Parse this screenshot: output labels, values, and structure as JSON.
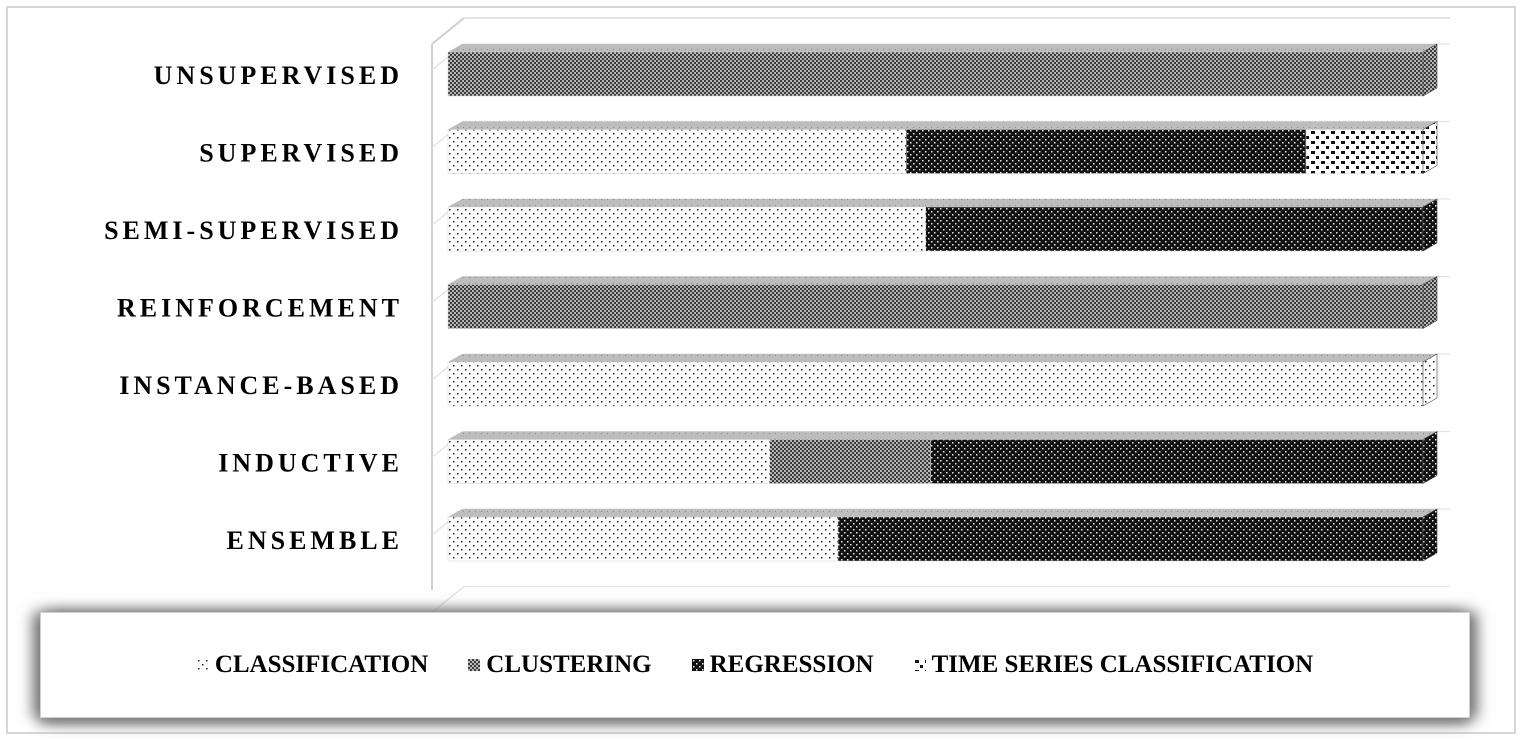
{
  "chart_data": {
    "type": "bar",
    "orientation": "horizontal",
    "stacked": "100%",
    "categories": [
      "UNSUPERVISED",
      "SUPERVISED",
      "SEMI-SUPERVISED",
      "REINFORCEMENT",
      "INSTANCE-BASED",
      "INDUCTIVE",
      "ENSEMBLE"
    ],
    "series": [
      {
        "name": "CLASSIFICATION",
        "values": [
          0,
          47,
          49,
          0,
          100,
          33,
          40
        ],
        "pattern": "dots-sparse",
        "color": "#ffffff"
      },
      {
        "name": "CLUSTERING",
        "values": [
          100,
          0,
          0,
          100,
          0,
          16.5,
          0
        ],
        "pattern": "checker",
        "color": "#8a8a8a"
      },
      {
        "name": "REGRESSION",
        "values": [
          0,
          41,
          51,
          0,
          0,
          50.5,
          60
        ],
        "pattern": "dots-dense-dark",
        "color": "#111111"
      },
      {
        "name": "TIME SERIES CLASSIFICATION",
        "values": [
          0,
          12,
          0,
          0,
          0,
          0,
          0
        ],
        "pattern": "squares",
        "color": "#ffffff"
      }
    ],
    "xlim": [
      0,
      100
    ],
    "grid": true,
    "legend_position": "bottom",
    "style": "3d-bars"
  }
}
